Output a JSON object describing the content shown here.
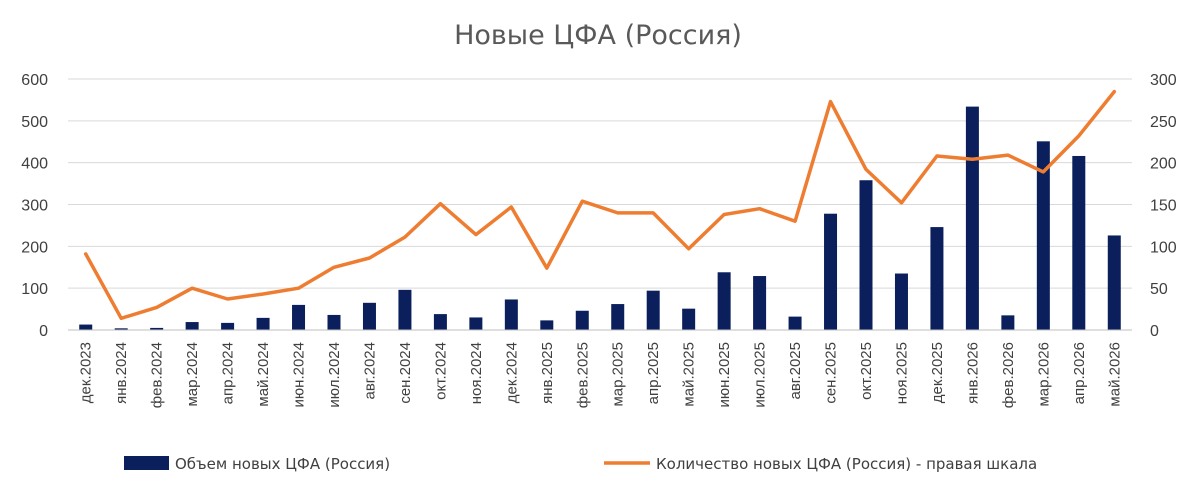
{
  "chart_data": {
    "type": "bar",
    "title": "Новые ЦФА (Россия)",
    "categories": [
      "дек.2023",
      "янв.2024",
      "фев.2024",
      "мар.2024",
      "апр.2024",
      "май.2024",
      "июн.2024",
      "июл.2024",
      "авг.2024",
      "сен.2024",
      "окт.2024",
      "ноя.2024",
      "дек.2024",
      "янв.2025",
      "фев.2025",
      "мар.2025",
      "апр.2025",
      "май.2025",
      "июн.2025",
      "июл.2025",
      "авг.2025",
      "сен.2025",
      "окт.2025",
      "ноя.2025",
      "дек.2025",
      "янв.2026",
      "фев.2026",
      "мар.2026",
      "апр.2026",
      "май.2026"
    ],
    "series": [
      {
        "name": "Объем новых ЦФА (Россия)",
        "type": "bar",
        "axis": "left",
        "color": "#0a1f5c",
        "values": [
          13,
          4,
          5,
          19,
          17,
          29,
          60,
          36,
          65,
          96,
          38,
          30,
          73,
          23,
          46,
          62,
          94,
          51,
          138,
          129,
          32,
          278,
          358,
          135,
          246,
          534,
          35,
          451,
          416,
          226
        ]
      },
      {
        "name": "Количество новых ЦФА (Россия) - правая шкала",
        "type": "line",
        "axis": "right",
        "color": "#ee7d31",
        "values": [
          91,
          14,
          27,
          50,
          37,
          43,
          50,
          75,
          86,
          111,
          151,
          114,
          147,
          74,
          154,
          140,
          140,
          97,
          138,
          145,
          130,
          273,
          192,
          152,
          208,
          204,
          209,
          189,
          232,
          285
        ]
      }
    ],
    "y_left": {
      "min": 0,
      "max": 600,
      "ticks": [
        "0",
        "100",
        "200",
        "300",
        "400",
        "500",
        "600"
      ]
    },
    "y_right": {
      "min": 0,
      "max": 300,
      "ticks": [
        "0",
        "50",
        "100",
        "150",
        "200",
        "250",
        "300"
      ]
    },
    "grid": true,
    "legend_position": "bottom"
  }
}
